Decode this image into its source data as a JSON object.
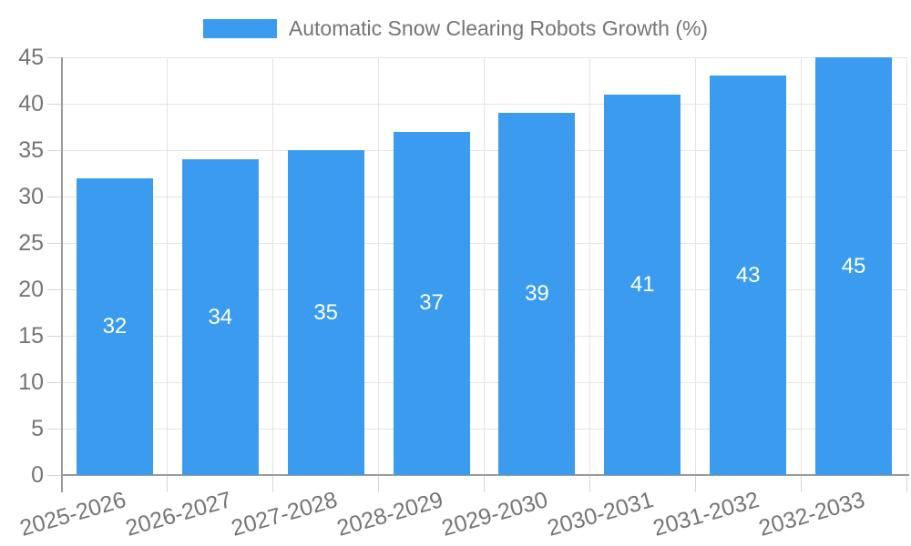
{
  "legend": {
    "label": "Automatic Snow Clearing Robots Growth (%)"
  },
  "chart_data": {
    "type": "bar",
    "title": "Automatic Snow Clearing Robots Growth (%)",
    "categories": [
      "2025-2026",
      "2026-2027",
      "2027-2028",
      "2028-2029",
      "2029-2030",
      "2030-2031",
      "2031-2032",
      "2032-2033"
    ],
    "values": [
      32,
      34,
      35,
      37,
      39,
      41,
      43,
      45
    ],
    "series": [
      {
        "name": "Automatic Snow Clearing Robots Growth (%)",
        "values": [
          32,
          34,
          35,
          37,
          39,
          41,
          43,
          45
        ]
      }
    ],
    "value_labels_shown": true,
    "xlabel": "",
    "ylabel": "",
    "ylim": [
      0,
      45
    ],
    "yticks": [
      0,
      5,
      10,
      15,
      20,
      25,
      30,
      35,
      40,
      45
    ],
    "grid": true,
    "legend_position": "top-center",
    "x_label_rotation_deg": -16,
    "colors": {
      "bar": "#3B9CEF",
      "value_label": "#FFFFFF",
      "axis_text": "#757575",
      "grid_line": "#E4E4E4",
      "axis_line": "#9A9A9A",
      "tick_line": "#D6D6D6",
      "background": "#FFFFFF"
    }
  }
}
